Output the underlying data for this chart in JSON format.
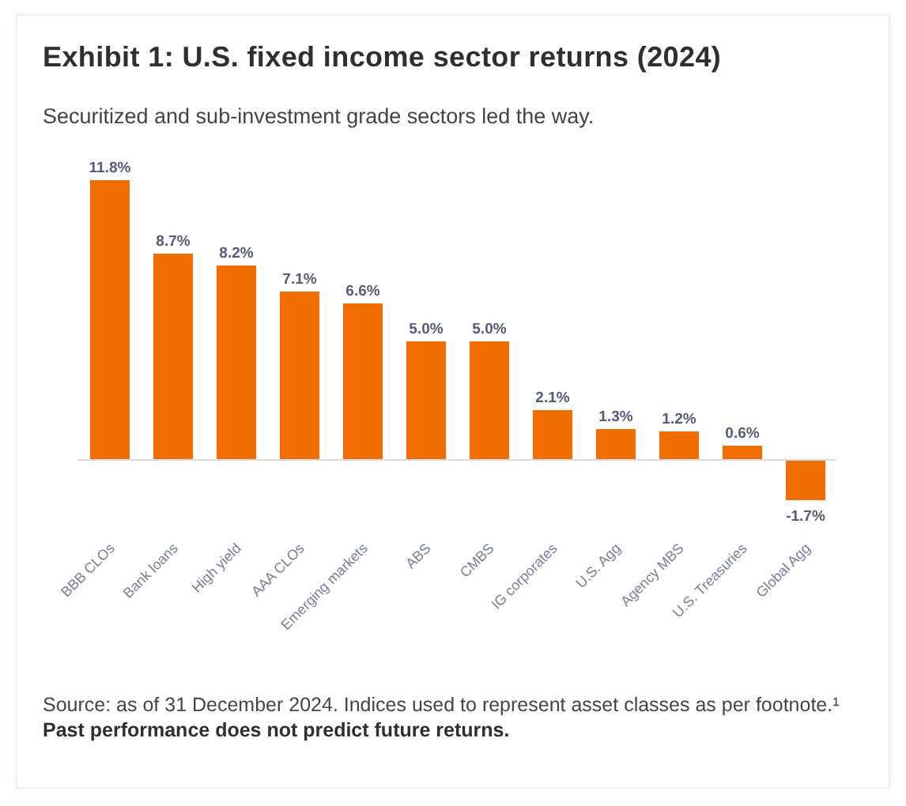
{
  "chart_data": {
    "type": "bar",
    "title": "Exhibit 1: U.S. fixed income sector returns (2024)",
    "subtitle": "Securitized and sub-investment grade sectors led the way.",
    "categories": [
      "BBB CLOs",
      "Bank loans",
      "High yield",
      "AAA CLOs",
      "Emerging markets",
      "ABS",
      "CMBS",
      "IG corporates",
      "U.S. Agg",
      "Agency MBS",
      "U.S. Treasuries",
      "Global Agg"
    ],
    "values": [
      11.8,
      8.7,
      8.2,
      7.1,
      6.6,
      5.0,
      5.0,
      2.1,
      1.3,
      1.2,
      0.6,
      -1.7
    ],
    "value_labels": [
      "11.8%",
      "8.7%",
      "8.2%",
      "7.1%",
      "6.6%",
      "5.0%",
      "5.0%",
      "2.1%",
      "1.3%",
      "1.2%",
      "0.6%",
      "-1.7%"
    ],
    "color": "#f06e00",
    "tick_labels": "x",
    "annotations": [
      "Source: as of 31 December 2024. Indices used to represent asset classes as per footnote.¹",
      "Past performance does not predict future returns."
    ]
  }
}
